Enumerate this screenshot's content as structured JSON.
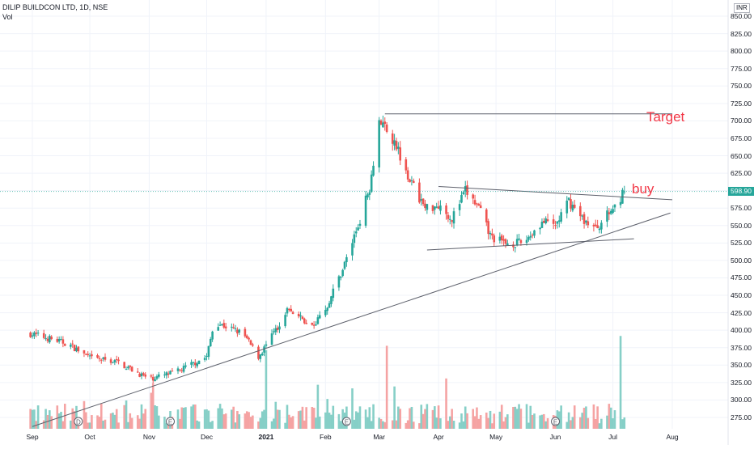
{
  "header": {
    "symbol": "DILIP BUILDCON LTD, 1D, NSE",
    "volume_label": "Vol"
  },
  "currency": "INR",
  "last_price": "598.90",
  "annotations": {
    "target": "Target",
    "buy": "buy"
  },
  "colors": {
    "up": "#26a69a",
    "down": "#ef5350",
    "up_volume": "#86cfc7",
    "down_volume": "#f5a3a3",
    "line": "#000000",
    "annotation": "#f23645",
    "last_price_line": "#26a69a"
  },
  "chart_data": {
    "type": "candlestick",
    "title": "DILIP BUILDCON LTD, 1D, NSE",
    "price_axis": {
      "ticks": [
        "850.00",
        "825.00",
        "800.00",
        "775.00",
        "750.00",
        "725.00",
        "700.00",
        "675.00",
        "650.00",
        "625.00",
        "600.00",
        "575.00",
        "550.00",
        "525.00",
        "500.00",
        "475.00",
        "450.00",
        "425.00",
        "400.00",
        "375.00",
        "350.00",
        "325.00",
        "300.00",
        "275.00"
      ],
      "range": [
        262,
        862
      ]
    },
    "time_axis": {
      "labels": [
        "Sep",
        "Oct",
        "Nov",
        "Dec",
        "2021",
        "Feb",
        "Mar",
        "Apr",
        "May",
        "Jun",
        "Jul",
        "Aug"
      ]
    },
    "series_anchor_points": [
      {
        "date": "2020-08-31",
        "close": 395
      },
      {
        "date": "2020-09-10",
        "close": 388
      },
      {
        "date": "2020-09-20",
        "close": 380
      },
      {
        "date": "2020-10-01",
        "close": 360
      },
      {
        "date": "2020-10-15",
        "close": 355
      },
      {
        "date": "2020-11-01",
        "close": 330
      },
      {
        "date": "2020-11-15",
        "close": 340
      },
      {
        "date": "2020-12-01",
        "close": 362
      },
      {
        "date": "2020-12-05",
        "close": 412
      },
      {
        "date": "2020-12-20",
        "close": 395
      },
      {
        "date": "2020-12-28",
        "close": 362
      },
      {
        "date": "2021-01-05",
        "close": 395
      },
      {
        "date": "2021-01-12",
        "close": 430
      },
      {
        "date": "2021-01-25",
        "close": 405
      },
      {
        "date": "2021-02-01",
        "close": 430
      },
      {
        "date": "2021-02-10",
        "close": 488
      },
      {
        "date": "2021-02-18",
        "close": 550
      },
      {
        "date": "2021-02-24",
        "close": 605
      },
      {
        "date": "2021-03-01",
        "close": 700
      },
      {
        "date": "2021-03-05",
        "close": 690
      },
      {
        "date": "2021-03-10",
        "close": 665
      },
      {
        "date": "2021-03-18",
        "close": 610
      },
      {
        "date": "2021-03-25",
        "close": 575
      },
      {
        "date": "2021-04-01",
        "close": 580
      },
      {
        "date": "2021-04-08",
        "close": 560
      },
      {
        "date": "2021-04-15",
        "close": 600
      },
      {
        "date": "2021-04-22",
        "close": 575
      },
      {
        "date": "2021-04-28",
        "close": 535
      },
      {
        "date": "2021-05-05",
        "close": 525
      },
      {
        "date": "2021-05-15",
        "close": 525
      },
      {
        "date": "2021-05-25",
        "close": 555
      },
      {
        "date": "2021-06-01",
        "close": 550
      },
      {
        "date": "2021-06-08",
        "close": 585
      },
      {
        "date": "2021-06-15",
        "close": 560
      },
      {
        "date": "2021-06-22",
        "close": 545
      },
      {
        "date": "2021-07-01",
        "close": 575
      },
      {
        "date": "2021-07-07",
        "close": 598.9
      }
    ],
    "trend_lines": [
      {
        "name": "target",
        "from": {
          "date": "2021-03-04",
          "price": 710
        },
        "to": {
          "date": "2021-08-01",
          "price": 710
        }
      },
      {
        "name": "upper",
        "from": {
          "date": "2021-04-01",
          "price": 606
        },
        "to": {
          "date": "2021-08-01",
          "price": 587
        }
      },
      {
        "name": "lower",
        "from": {
          "date": "2021-03-26",
          "price": 515
        },
        "to": {
          "date": "2021-07-12",
          "price": 531
        }
      },
      {
        "name": "support",
        "from": {
          "date": "2020-09-01",
          "price": 262
        },
        "to": {
          "date": "2021-07-31",
          "price": 568
        }
      }
    ],
    "volume": {
      "label": "Vol",
      "notable_bars": [
        {
          "date": "2021-01-01",
          "relative": 0.72
        },
        {
          "date": "2021-03-05",
          "relative": 0.76
        },
        {
          "date": "2021-05-01",
          "relative": 0.74
        },
        {
          "date": "2021-07-05",
          "relative": 0.85
        },
        {
          "date": "2021-07-08",
          "relative": 0.99
        }
      ]
    },
    "event_markers": [
      {
        "date": "2020-09-25",
        "label": "D"
      },
      {
        "date": "2020-11-12",
        "label": "E"
      },
      {
        "date": "2021-02-12",
        "label": "E"
      },
      {
        "date": "2021-06-01",
        "label": "E"
      }
    ],
    "grid": true
  }
}
